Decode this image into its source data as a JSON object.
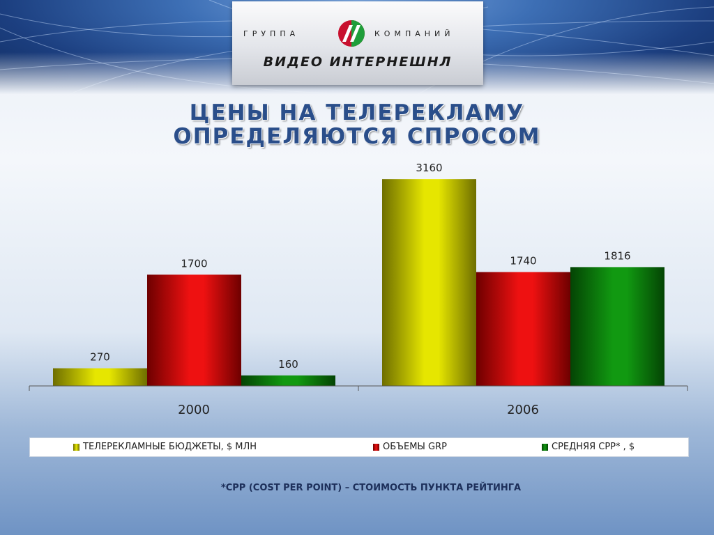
{
  "logo": {
    "word_left": "ГРУППА",
    "word_right": "КОМПАНИЙ",
    "name": "ВИДЕО ИНТЕРНЕШНЛ"
  },
  "title": {
    "line1": "ЦЕНЫ НА ТЕЛЕРЕКЛАМУ",
    "line2": "ОПРЕДЕЛЯЮТСЯ СПРОСОМ"
  },
  "chart_data": {
    "type": "bar",
    "categories": [
      "2000",
      "2006"
    ],
    "series": [
      {
        "name": "ТЕЛЕРЕКЛАМНЫЕ БЮДЖЕТЫ, $ МЛН",
        "values": [
          270,
          3160
        ],
        "color": "#e6e600",
        "color_dark": "#6e6e00"
      },
      {
        "name": "ОБЪЕМЫ GRP",
        "values": [
          1700,
          1740
        ],
        "color": "#ee1111",
        "color_dark": "#6e0000"
      },
      {
        "name": "СРЕДНЯЯ CPP* , $",
        "values": [
          160,
          1816
        ],
        "color": "#119911",
        "color_dark": "#044404"
      }
    ],
    "ylim": [
      0,
      3300
    ],
    "grid": false,
    "legend": "bottom",
    "data_labels": true
  },
  "footnote": "*CPP (COST PER POINT) – СТОИМОСТЬ ПУНКТА РЕЙТИНГА"
}
